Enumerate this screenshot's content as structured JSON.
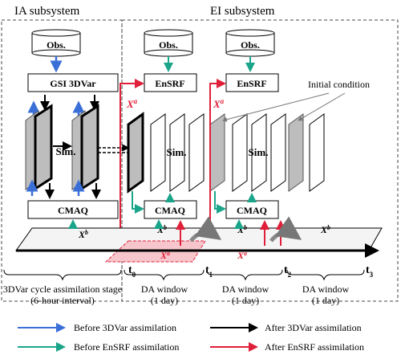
{
  "subsystems": {
    "ia": "IA subsystem",
    "ei": "EI subsystem"
  },
  "nodes": {
    "obs": "Obs.",
    "gsi": "GSI 3DVar",
    "enkf": "EnSRF",
    "cmaq": "CMAQ",
    "sim": "Sim."
  },
  "math": {
    "xa_base": "X",
    "xa_sup": "a",
    "xb_base": "X",
    "xb_sup": "b"
  },
  "annotations": {
    "initial_condition": "Initial condition"
  },
  "timeline": {
    "ticks": [
      {
        "base": "t",
        "sub": "0"
      },
      {
        "base": "t",
        "sub": "1"
      },
      {
        "base": "t",
        "sub": "2"
      },
      {
        "base": "t",
        "sub": "3"
      }
    ]
  },
  "stages": {
    "s3dvar_l1": "3DVar cycle assimilation stage",
    "s3dvar_l2": "(6-hour interval)",
    "da_l1": "DA window",
    "da_l2": "(1 day)"
  },
  "legend": [
    {
      "label": "Before 3DVar assimilation",
      "color": "#3a6fd8"
    },
    {
      "label": "After 3DVar assimilation",
      "color": "#000000"
    },
    {
      "label": "Before EnSRF assimilation",
      "color": "#1aa58a"
    },
    {
      "label": "After EnSRF assimilation",
      "color": "#e0203a"
    }
  ],
  "colors": {
    "blue": "#3a6fd8",
    "black": "#000000",
    "teal": "#1aa58a",
    "red": "#e0203a",
    "grayPanel": "#bdbdbd",
    "pinkShade": "#f6c6cc"
  }
}
